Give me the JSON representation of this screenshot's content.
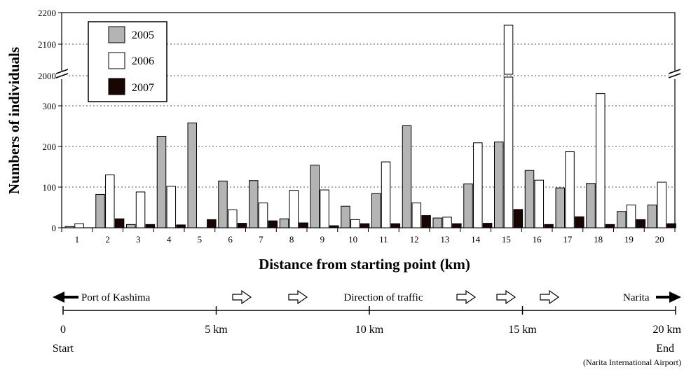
{
  "chart_data": {
    "type": "bar",
    "title": "",
    "xlabel": "Distance from starting point (km)",
    "ylabel": "Numbers of individuals",
    "categories": [
      "1",
      "2",
      "3",
      "4",
      "5",
      "6",
      "7",
      "8",
      "9",
      "10",
      "11",
      "12",
      "13",
      "14",
      "15",
      "16",
      "17",
      "18",
      "19",
      "20"
    ],
    "series": [
      {
        "name": "2005",
        "color": "#b4b4b4",
        "values": [
          3,
          82,
          8,
          225,
          258,
          115,
          116,
          22,
          154,
          53,
          84,
          251,
          24,
          108,
          211,
          141,
          98,
          109,
          40,
          56
        ]
      },
      {
        "name": "2006",
        "color": "#ffffff",
        "values": [
          10,
          130,
          88,
          102,
          0,
          44,
          61,
          92,
          93,
          20,
          162,
          61,
          26,
          209,
          2160,
          117,
          187,
          330,
          56,
          112
        ]
      },
      {
        "name": "2007",
        "color": "#1a0505",
        "values": [
          0,
          22,
          8,
          7,
          20,
          11,
          17,
          12,
          5,
          10,
          10,
          30,
          10,
          11,
          45,
          8,
          27,
          8,
          20,
          10
        ]
      }
    ],
    "y_axis": {
      "lower_ticks": [
        "0",
        "100",
        "200",
        "300"
      ],
      "upper_ticks": [
        "2000",
        "2100",
        "2200"
      ],
      "lower_range": [
        0,
        350
      ],
      "upper_range": [
        2000,
        2200
      ],
      "broken": true
    },
    "grid": "horizontal dotted",
    "legend": {
      "position": "top-left",
      "entries": [
        "2005",
        "2006",
        "2007"
      ]
    }
  },
  "route": {
    "left_label": "Port of Kashima",
    "center_label": "Direction of traffic",
    "right_label": "Narita",
    "scale_ticks": [
      "0",
      "5 km",
      "10 km",
      "15 km",
      "20 km"
    ],
    "start_label": "Start",
    "end_label": "End",
    "end_sub_label": "(Narita International Airport)"
  }
}
